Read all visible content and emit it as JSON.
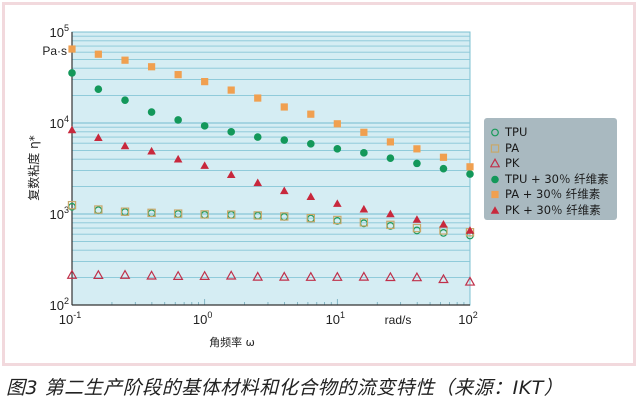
{
  "chart_data": {
    "type": "scatter",
    "title": "",
    "xlabel": "角频率 ω",
    "x_unit_label": "rad/s",
    "ylabel": "复数粘度 η*",
    "y_unit_label": "Pa·s",
    "xscale": "log",
    "yscale": "log",
    "xlim": [
      0.1,
      100
    ],
    "ylim": [
      100,
      100000
    ],
    "x_tick_labels": [
      {
        "base": "10",
        "exp": "-1"
      },
      {
        "base": "10",
        "exp": "0"
      },
      {
        "base": "10",
        "exp": "1"
      },
      {
        "base": "10",
        "exp": "2"
      }
    ],
    "y_tick_labels": [
      {
        "base": "10",
        "exp": "2"
      },
      {
        "base": "10",
        "exp": "3"
      },
      {
        "base": "10",
        "exp": "4"
      },
      {
        "base": "10",
        "exp": "5"
      }
    ],
    "grid": "horizontal",
    "legend_position": "right",
    "x": [
      0.1,
      0.158,
      0.251,
      0.398,
      0.631,
      1.0,
      1.585,
      2.512,
      3.981,
      6.31,
      10,
      15.85,
      25.12,
      39.81,
      63.1,
      100
    ],
    "series": [
      {
        "name": "TPU",
        "marker": "circle-open",
        "color": "#1a9a5a",
        "values": [
          1200,
          1100,
          1050,
          1020,
          1000,
          980,
          980,
          960,
          930,
          890,
          840,
          790,
          740,
          660,
          620,
          580
        ]
      },
      {
        "name": "PA",
        "marker": "square-open",
        "color": "#c8a86a",
        "values": [
          1250,
          1120,
          1060,
          1030,
          1010,
          990,
          985,
          965,
          940,
          900,
          860,
          810,
          760,
          700,
          660,
          630
        ]
      },
      {
        "name": "PK",
        "marker": "triangle-open",
        "color": "#c0304a",
        "values": [
          214,
          213,
          214,
          210,
          208,
          208,
          210,
          204,
          204,
          203,
          203,
          204,
          202,
          201,
          192,
          180
        ]
      },
      {
        "name": "TPU + 30％ 纤维素",
        "marker": "circle",
        "color": "#13985a",
        "values": [
          35500,
          23500,
          17800,
          13200,
          10800,
          9300,
          8000,
          7000,
          6500,
          5900,
          5200,
          4700,
          4100,
          3600,
          3150,
          2750
        ]
      },
      {
        "name": "PA + 30％ 纤维素",
        "marker": "square",
        "color": "#f0a050",
        "values": [
          65000,
          57000,
          49000,
          41500,
          34000,
          28500,
          23000,
          18800,
          15000,
          12500,
          9800,
          7900,
          6200,
          5200,
          4200,
          3300
        ]
      },
      {
        "name": "PK + 30％ 纤维素",
        "marker": "triangle",
        "color": "#c8283c",
        "values": [
          8400,
          6900,
          5600,
          4900,
          4000,
          3400,
          2700,
          2200,
          1800,
          1550,
          1300,
          1130,
          1000,
          870,
          770,
          660
        ]
      }
    ]
  },
  "caption": "图3 第二生产阶段的基体材料和化合物的流变特性（来源：IKT）",
  "colors": {
    "plot_bg": "#d5edf3",
    "grid": "#86c6d6",
    "frame": "#f2d9dd",
    "legend_bg": "#a9b9c0"
  }
}
